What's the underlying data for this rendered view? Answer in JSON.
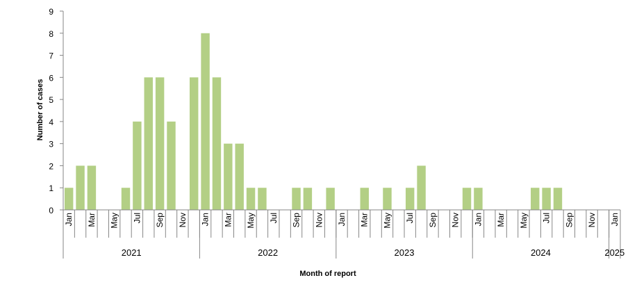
{
  "chart_data": {
    "type": "bar",
    "title": "",
    "xlabel": "Month of report",
    "ylabel": "Number of cases",
    "ylim": [
      0,
      9
    ],
    "yticks": [
      0,
      1,
      2,
      3,
      4,
      5,
      6,
      7,
      8,
      9
    ],
    "grid": false,
    "bar_color": "#b3cf85",
    "categories": [
      "Jan 2021",
      "Feb 2021",
      "Mar 2021",
      "Apr 2021",
      "May 2021",
      "Jun 2021",
      "Jul 2021",
      "Aug 2021",
      "Sep 2021",
      "Oct 2021",
      "Nov 2021",
      "Dec 2021",
      "Jan 2022",
      "Feb 2022",
      "Mar 2022",
      "Apr 2022",
      "May 2022",
      "Jun 2022",
      "Jul 2022",
      "Aug 2022",
      "Sep 2022",
      "Oct 2022",
      "Nov 2022",
      "Dec 2022",
      "Jan 2023",
      "Feb 2023",
      "Mar 2023",
      "Apr 2023",
      "May 2023",
      "Jun 2023",
      "Jul 2023",
      "Aug 2023",
      "Sep 2023",
      "Oct 2023",
      "Nov 2023",
      "Dec 2023",
      "Jan 2024",
      "Feb 2024",
      "Mar 2024",
      "Apr 2024",
      "May 2024",
      "Jun 2024",
      "Jul 2024",
      "Aug 2024",
      "Sep 2024",
      "Oct 2024",
      "Nov 2024",
      "Dec 2024",
      "Jan 2025"
    ],
    "values": [
      1,
      2,
      2,
      0,
      0,
      1,
      4,
      6,
      6,
      4,
      0,
      6,
      8,
      6,
      3,
      3,
      1,
      1,
      0,
      0,
      1,
      1,
      0,
      1,
      0,
      0,
      1,
      0,
      1,
      0,
      1,
      2,
      0,
      0,
      0,
      1,
      1,
      0,
      0,
      0,
      0,
      1,
      1,
      1,
      0,
      0,
      0,
      0,
      0
    ],
    "month_tick_labels": [
      "Jan",
      "",
      "Mar",
      "",
      "May",
      "",
      "Jul",
      "",
      "Sep",
      "",
      "Nov",
      "",
      "Jan",
      "",
      "Mar",
      "",
      "May",
      "",
      "Jul",
      "",
      "Sep",
      "",
      "Nov",
      "",
      "Jan",
      "",
      "Mar",
      "",
      "May",
      "",
      "Jul",
      "",
      "Sep",
      "",
      "Nov",
      "",
      "Jan",
      "",
      "Mar",
      "",
      "May",
      "",
      "Jul",
      "",
      "Sep",
      "",
      "Nov",
      "",
      "Jan"
    ],
    "years": [
      {
        "label": "2021",
        "months": 12
      },
      {
        "label": "2022",
        "months": 12
      },
      {
        "label": "2023",
        "months": 12
      },
      {
        "label": "2024",
        "months": 12
      },
      {
        "label": "2025",
        "months": 1
      }
    ]
  }
}
